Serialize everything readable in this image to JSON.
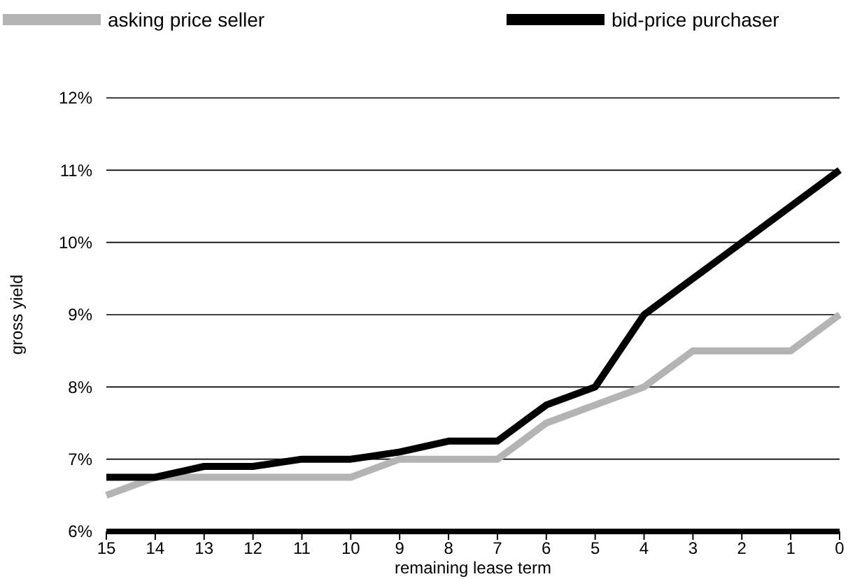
{
  "chart_data": {
    "type": "line",
    "xlabel": "remaining lease term",
    "ylabel": "gross yield",
    "categories": [
      "15",
      "14",
      "13",
      "12",
      "11",
      "10",
      "9",
      "8",
      "7",
      "6",
      "5",
      "4",
      "3",
      "2",
      "1",
      "0"
    ],
    "series": [
      {
        "name": "asking price seller",
        "color": "#b4b4b4",
        "values": [
          6.5,
          6.75,
          6.75,
          6.75,
          6.75,
          6.75,
          7,
          7,
          7,
          7.5,
          7.75,
          8,
          8.5,
          8.5,
          8.5,
          9
        ]
      },
      {
        "name": "bid-price purchaser",
        "color": "#000000",
        "values": [
          6.75,
          6.75,
          6.9,
          6.9,
          7,
          7,
          7.1,
          7.25,
          7.25,
          7.75,
          8,
          9,
          9.5,
          10,
          10.5,
          11
        ]
      }
    ],
    "ylim": [
      6,
      12
    ],
    "yticks": [
      {
        "value": 6,
        "label": "6%"
      },
      {
        "value": 7,
        "label": "7%"
      },
      {
        "value": 8,
        "label": "8%"
      },
      {
        "value": 9,
        "label": "9%"
      },
      {
        "value": 10,
        "label": "10%"
      },
      {
        "value": 11,
        "label": "11%"
      },
      {
        "value": 12,
        "label": "12%"
      }
    ],
    "grid": "y",
    "legend": "top",
    "line_style": "solid"
  }
}
